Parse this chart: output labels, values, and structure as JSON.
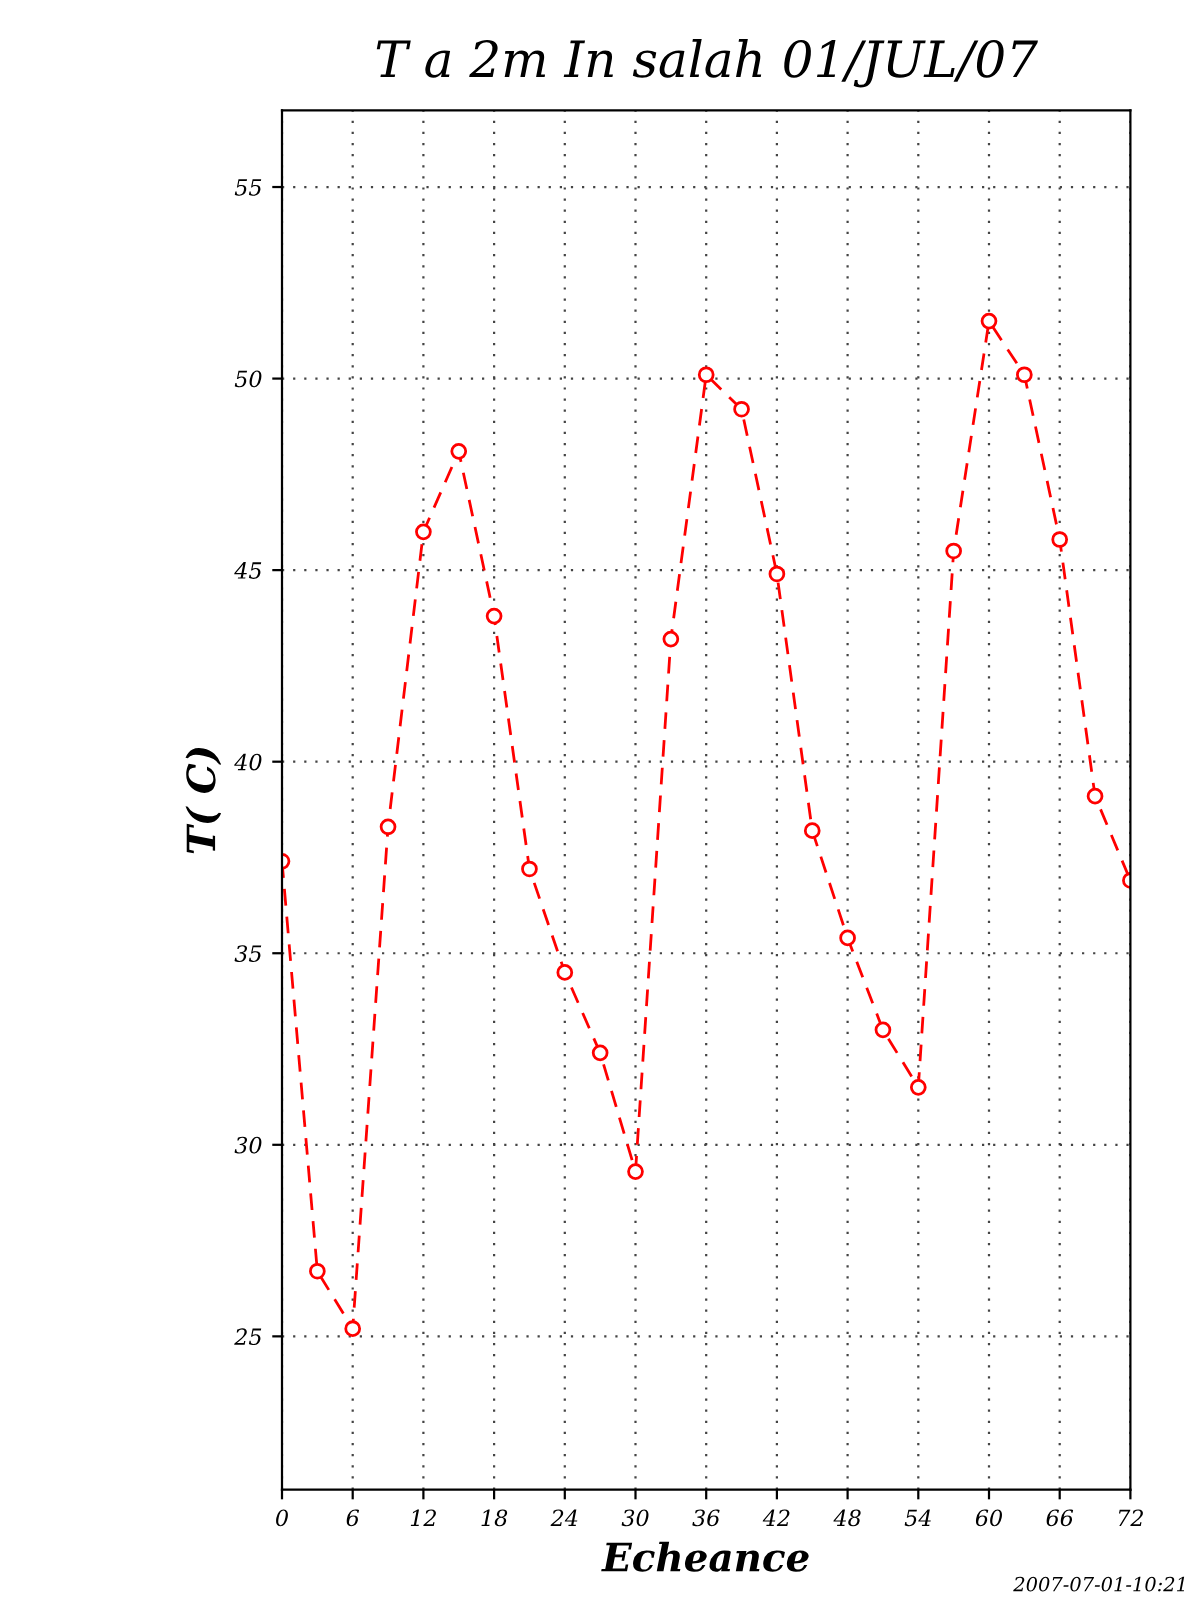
{
  "chart_data": {
    "type": "line",
    "title": "T a 2m In salah 01/JUL/07",
    "xlabel": "Echeance",
    "ylabel": "T( C)",
    "annotations": [
      "2007-07-01-10:21"
    ],
    "x": [
      0,
      3,
      6,
      9,
      12,
      15,
      18,
      21,
      24,
      27,
      30,
      33,
      36,
      39,
      42,
      45,
      48,
      51,
      54,
      57,
      60,
      63,
      66,
      69,
      72
    ],
    "series": [
      {
        "color": "#ff0000",
        "values": [
          37.4,
          26.7,
          25.2,
          38.3,
          46.0,
          48.1,
          43.8,
          37.2,
          34.5,
          32.4,
          29.3,
          43.2,
          50.1,
          49.2,
          44.9,
          38.2,
          35.4,
          33.0,
          31.5,
          45.5,
          51.5,
          50.1,
          45.8,
          39.1,
          36.9
        ]
      }
    ],
    "xlim": [
      0,
      72
    ],
    "xticks": [
      0,
      6,
      12,
      18,
      24,
      30,
      36,
      42,
      48,
      54,
      60,
      66,
      72
    ],
    "ylim": [
      21,
      57
    ],
    "yticks": [
      25,
      30,
      35,
      40,
      45,
      50,
      55
    ],
    "grid": true,
    "marker": "circle",
    "line_style": "dashed"
  }
}
